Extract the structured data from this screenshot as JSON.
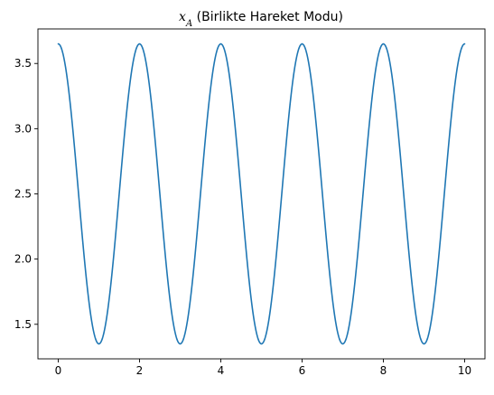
{
  "chart_data": {
    "type": "line",
    "title": {
      "symbol": "x",
      "subscript": "A",
      "text": " (Birlikte Hareket Modu)"
    },
    "xlabel": "",
    "ylabel": "",
    "xlim": [
      -0.5,
      10.5
    ],
    "ylim": [
      1.235,
      3.765
    ],
    "xticks": [
      0,
      2,
      4,
      6,
      8,
      10
    ],
    "xtick_labels": [
      "0",
      "2",
      "4",
      "6",
      "8",
      "10"
    ],
    "yticks": [
      1.5,
      2.0,
      2.5,
      3.0,
      3.5
    ],
    "ytick_labels": [
      "1.5",
      "2.0",
      "2.5",
      "3.0",
      "3.5"
    ],
    "grid": false,
    "series": [
      {
        "color": "#1f77b4",
        "function": {
          "form": "offset + amplitude * cos(2*pi*x/period)",
          "offset": 2.5,
          "amplitude": 1.15,
          "period": 2.0
        },
        "x_range": [
          0,
          10
        ]
      }
    ]
  }
}
